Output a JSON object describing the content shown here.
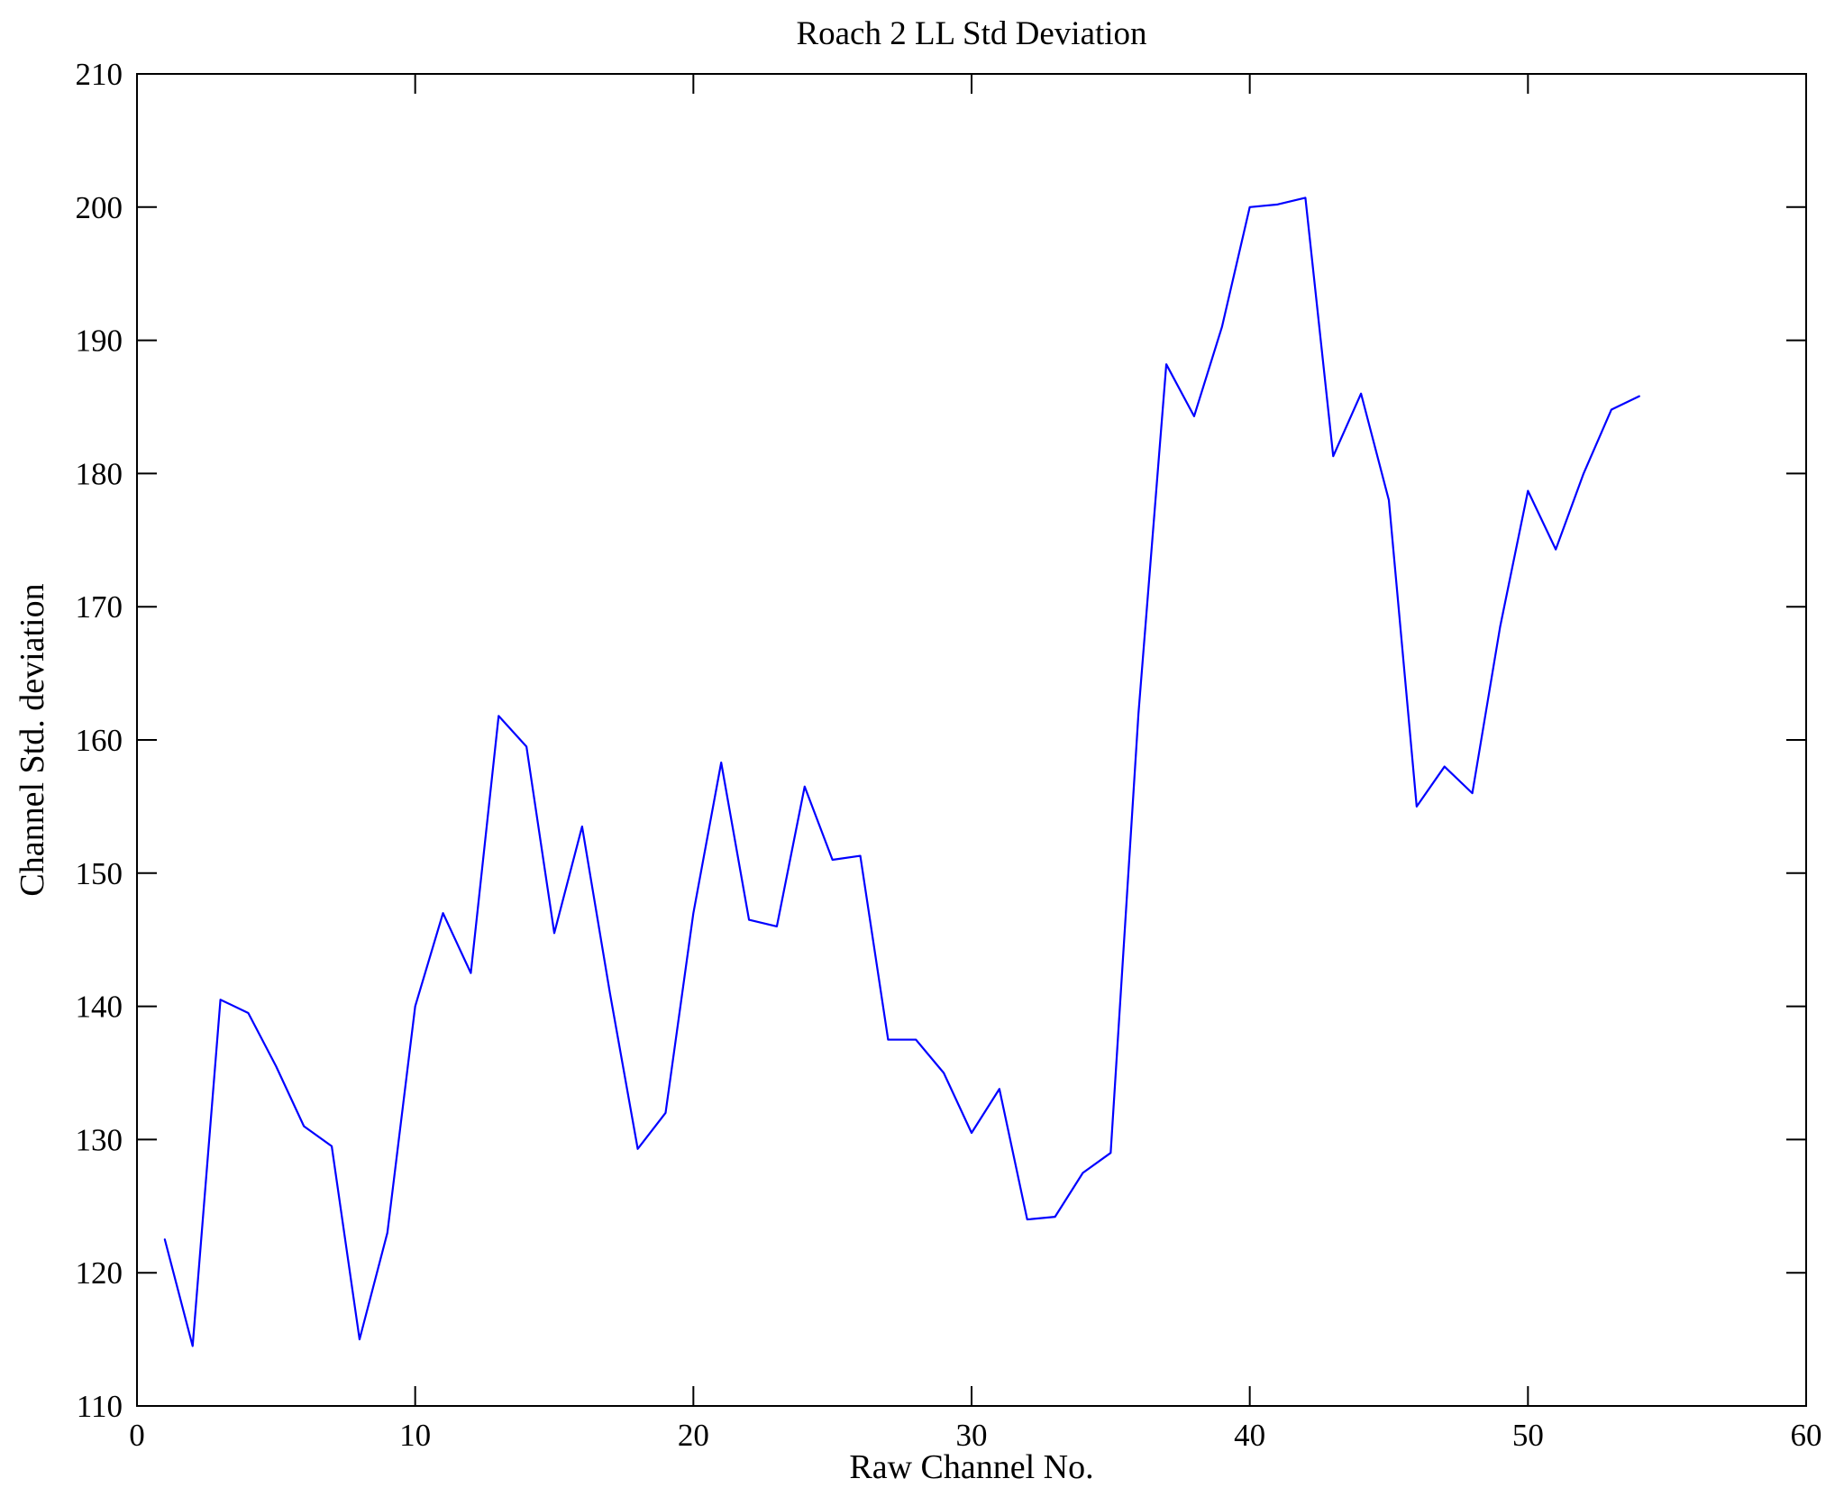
{
  "chart_data": {
    "type": "line",
    "title": "Roach 2 LL Std Deviation",
    "xlabel": "Raw Channel No.",
    "ylabel": "Channel Std. deviation",
    "xlim": [
      0,
      60
    ],
    "ylim": [
      110,
      210
    ],
    "xticks": [
      0,
      10,
      20,
      30,
      40,
      50,
      60
    ],
    "yticks": [
      110,
      120,
      130,
      140,
      150,
      160,
      170,
      180,
      190,
      200,
      210
    ],
    "grid": false,
    "legend": "none",
    "line_color": "#0000FF",
    "frame_color": "#000000",
    "x": [
      1,
      2,
      3,
      4,
      5,
      6,
      7,
      8,
      9,
      10,
      11,
      12,
      13,
      14,
      15,
      16,
      17,
      18,
      19,
      20,
      21,
      22,
      23,
      24,
      25,
      26,
      27,
      28,
      29,
      30,
      31,
      32,
      33,
      34,
      35,
      36,
      37,
      38,
      39,
      40,
      41,
      42,
      43,
      44,
      45,
      46,
      47,
      48,
      49,
      50,
      51,
      52,
      53,
      54
    ],
    "y": [
      122.5,
      114.5,
      140.5,
      139.5,
      135.5,
      131.0,
      129.5,
      115.0,
      123.0,
      140.0,
      147.0,
      142.5,
      161.8,
      159.5,
      145.5,
      153.5,
      141.0,
      129.3,
      132.0,
      147.0,
      158.3,
      146.5,
      146.0,
      156.5,
      151.0,
      151.3,
      137.5,
      137.5,
      135.0,
      130.5,
      133.8,
      124.0,
      124.2,
      127.5,
      129.0,
      162.0,
      188.2,
      184.3,
      191.0,
      200.0,
      200.2,
      200.7,
      181.3,
      186.0,
      178.0,
      155.0,
      158.0,
      156.0,
      168.5,
      178.7,
      174.3,
      180.0,
      184.8,
      185.8
    ]
  }
}
